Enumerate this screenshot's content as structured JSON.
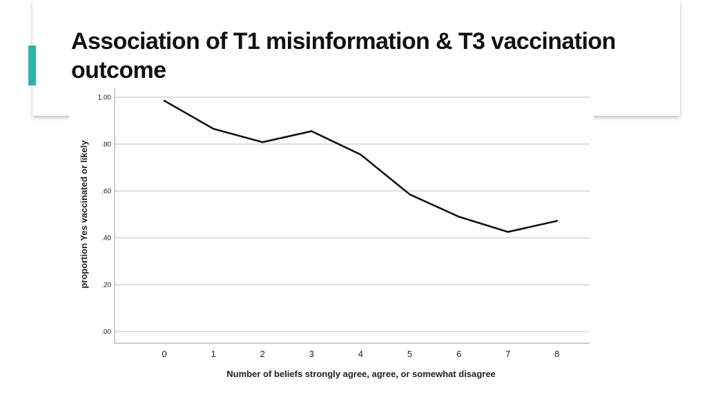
{
  "slide": {
    "title": "Association of T1 misinformation & T3 vaccination outcome",
    "accent_color": "#2bb5a6"
  },
  "chart_data": {
    "type": "line",
    "x": [
      0,
      1,
      2,
      3,
      4,
      5,
      6,
      7,
      8
    ],
    "categories": [
      "0",
      "1",
      "2",
      "3",
      "4",
      "5",
      "6",
      "7",
      "8"
    ],
    "series": [
      {
        "name": "proportion Yes vaccinated or likely",
        "values": [
          0.985,
          0.865,
          0.808,
          0.855,
          0.755,
          0.585,
          0.49,
          0.425,
          0.472
        ]
      }
    ],
    "y_ticks": [
      0.0,
      0.2,
      0.4,
      0.6,
      0.8,
      1.0
    ],
    "y_tick_labels": [
      ".00",
      ".20",
      ".40",
      ".60",
      ".80",
      "1.00"
    ],
    "ylim": [
      0.0,
      1.0
    ],
    "xlabel": "Number of beliefs strongly agree, agree, or somewhat disagree",
    "ylabel": "proportion Yes vaccinated or likely",
    "grid": true,
    "line_color": "#111111"
  }
}
